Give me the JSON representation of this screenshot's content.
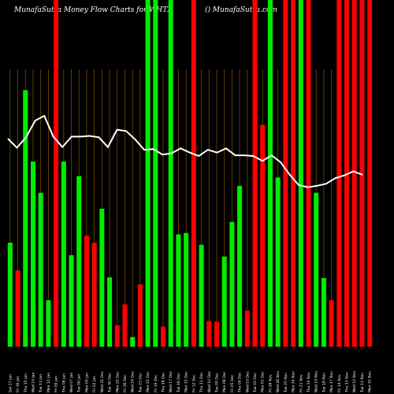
{
  "header": {
    "title": "MunafaSutra  Money Flow  Charts for WHTX",
    "copyright": "() MunafaSutra.com"
  },
  "colors": {
    "background": "#000000",
    "up": "#00ee00",
    "down": "#ff0000",
    "line": "#ffffff",
    "grid": "#7a4a00"
  },
  "chart_data": {
    "type": "bar",
    "categories": [
      "Sat 17 Jan",
      "Fri 16 Jan",
      "Thu 15 Jan",
      "Wed 14 Jan",
      "Tue 13 Jan",
      "Mon 12 Jan",
      "Fri 09 Jan",
      "Thu 08 Jan",
      "Wed 07 Jan",
      "Tue 06 Jan",
      "Mon 05 Jan",
      "Fri 02 Jan",
      "Wed 31 Dec",
      "Tue 30 Dec",
      "Mon 29 Dec",
      "Fri 26 Dec",
      "Wed 24 Dec",
      "Tue 23 Dec",
      "Mon 22 Dec",
      "Fri 19 Dec",
      "Thu 18 Dec",
      "Wed 17 Dec",
      "Tue 16 Dec",
      "Mon 15 Dec",
      "Fri 12 Dec",
      "Thu 11 Dec",
      "Wed 10 Dec",
      "Tue 09 Dec",
      "Mon 08 Dec",
      "Fri 05 Dec",
      "Thu 04 Dec",
      "Wed 03 Dec",
      "Tue 02 Dec",
      "Mon 01 Dec",
      "Fri 28 Nov",
      "Wed 26 Nov",
      "Tue 25 Nov",
      "Mon 24 Nov",
      "Fri 21 Nov",
      "Thu 20 Nov",
      "Wed 19 Nov",
      "Tue 18 Nov",
      "Mon 17 Nov",
      "Fri 14 Nov",
      "Thu 13 Nov",
      "Wed 12 Nov",
      "Tue 11 Nov",
      "Mon 10 Nov"
    ],
    "bar_values": [
      150,
      110,
      370,
      267,
      222,
      67,
      500,
      267,
      132,
      246,
      160,
      150,
      199,
      100,
      31,
      61,
      14,
      90,
      500,
      500,
      29,
      500,
      162,
      164,
      500,
      147,
      37,
      36,
      130,
      180,
      232,
      52,
      500,
      320,
      500,
      244,
      500,
      500,
      500,
      500,
      222,
      99,
      67,
      500,
      500,
      500,
      500,
      500
    ],
    "bar_colors": [
      "green",
      "red",
      "green",
      "green",
      "green",
      "green",
      "red",
      "green",
      "green",
      "green",
      "red",
      "red",
      "green",
      "green",
      "red",
      "red",
      "green",
      "red",
      "green",
      "green",
      "red",
      "green",
      "green",
      "green",
      "red",
      "green",
      "red",
      "red",
      "green",
      "green",
      "green",
      "red",
      "red",
      "red",
      "green",
      "green",
      "red",
      "red",
      "green",
      "red",
      "green",
      "green",
      "red",
      "red",
      "red",
      "red",
      "red",
      "red"
    ],
    "line_values": [
      300,
      287,
      302,
      326,
      333,
      303,
      288,
      303,
      303,
      304,
      302,
      288,
      313,
      311,
      299,
      284,
      285,
      277,
      279,
      286,
      280,
      275,
      284,
      280,
      286,
      276,
      276,
      275,
      268,
      276,
      266,
      248,
      233,
      230,
      232,
      235,
      243,
      247,
      253,
      248
    ],
    "line_range": [
      0,
      500
    ],
    "grid": true
  }
}
